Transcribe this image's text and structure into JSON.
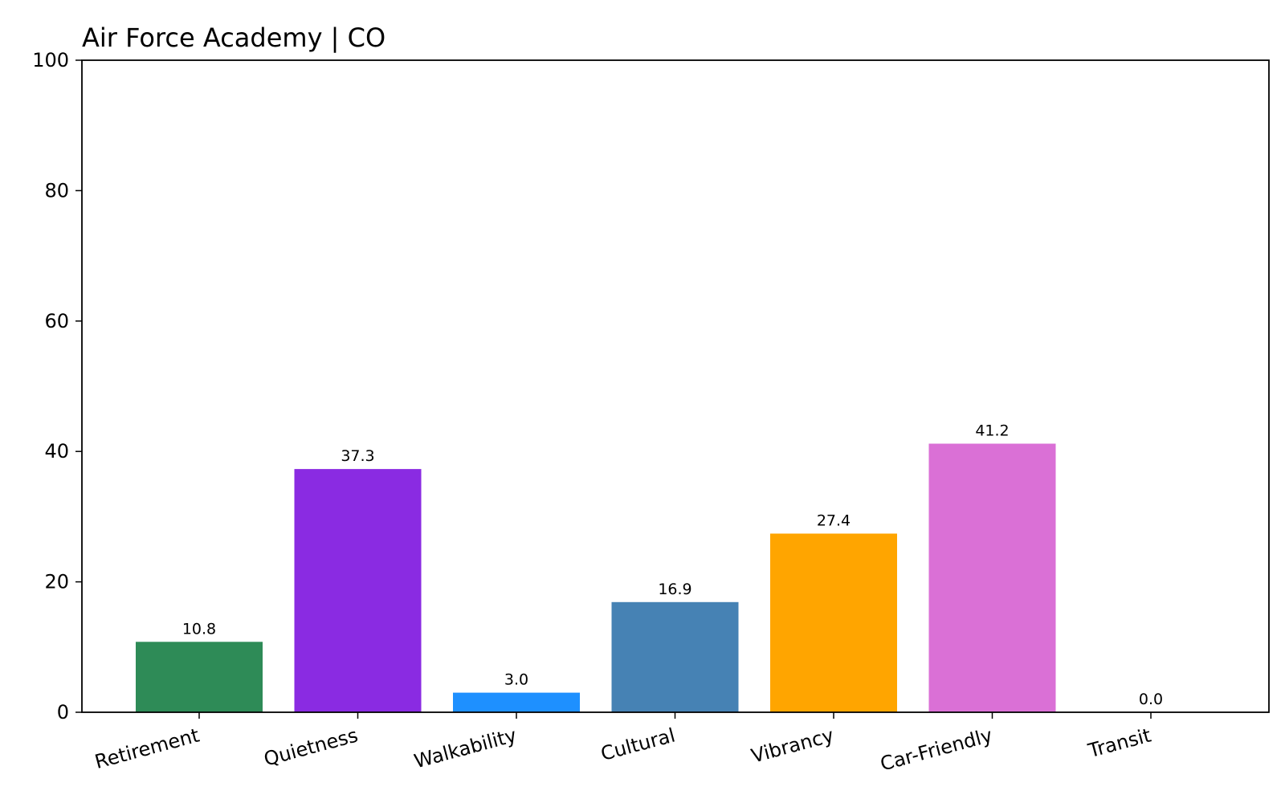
{
  "chart_data": {
    "type": "bar",
    "title": "Air Force Academy | CO",
    "xlabel": "",
    "ylabel": "",
    "ylim": [
      0,
      100
    ],
    "yticks": [
      0,
      20,
      40,
      60,
      80,
      100
    ],
    "grid": false,
    "legend": "none",
    "categories": [
      "Retirement",
      "Quietness",
      "Walkability",
      "Cultural",
      "Vibrancy",
      "Car-Friendly",
      "Transit"
    ],
    "values": [
      10.8,
      37.3,
      3.0,
      16.9,
      27.4,
      41.2,
      0.0
    ],
    "value_labels": [
      "10.8",
      "37.3",
      "3.0",
      "16.9",
      "27.4",
      "41.2",
      "0.0"
    ],
    "colors": [
      "#2e8b57",
      "#8a2be2",
      "#1e90ff",
      "#4682b4",
      "#ffa500",
      "#da70d6",
      "#808080"
    ]
  }
}
